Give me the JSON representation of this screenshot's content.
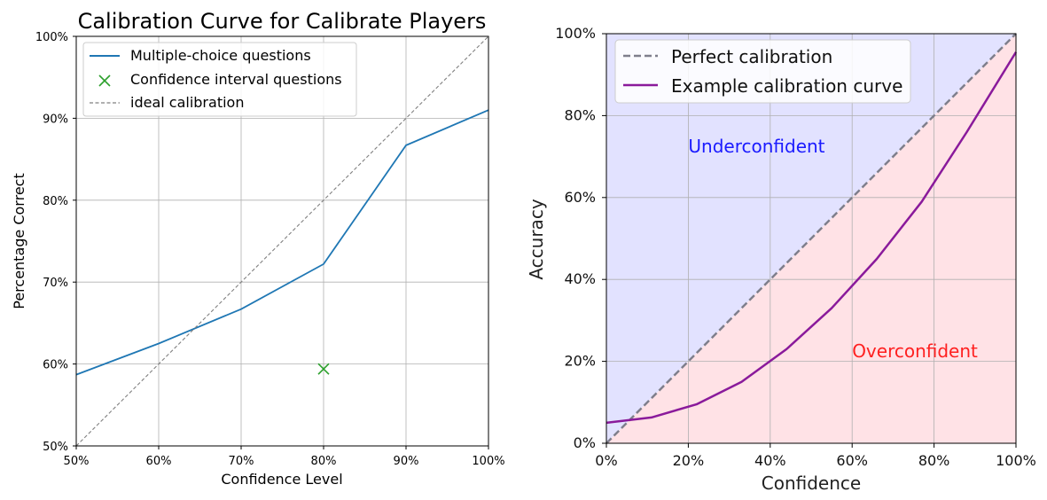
{
  "chart_data": [
    {
      "type": "line",
      "title": "Calibration Curve for Calibrate Players",
      "xlabel": "Confidence Level",
      "ylabel": "Percentage Correct",
      "xlim": [
        0.5,
        1.0
      ],
      "ylim": [
        0.5,
        1.0
      ],
      "xticks": [
        0.5,
        0.6,
        0.7,
        0.8,
        0.9,
        1.0
      ],
      "xtick_labels": [
        "50%",
        "60%",
        "70%",
        "80%",
        "90%",
        "100%"
      ],
      "yticks": [
        0.5,
        0.6,
        0.7,
        0.8,
        0.9,
        1.0
      ],
      "ytick_labels": [
        "50%",
        "60%",
        "70%",
        "80%",
        "90%",
        "100%"
      ],
      "grid": true,
      "legend_position": "top-left",
      "series": [
        {
          "name": "Multiple-choice questions",
          "kind": "line",
          "color": "#1f77b4",
          "x": [
            0.5,
            0.6,
            0.7,
            0.8,
            0.9,
            1.0
          ],
          "y": [
            0.587,
            0.625,
            0.667,
            0.722,
            0.867,
            0.91
          ]
        },
        {
          "name": "Confidence interval questions",
          "kind": "marker-x",
          "color": "#2ca02c",
          "x": [
            0.8
          ],
          "y": [
            0.594
          ]
        },
        {
          "name": "ideal calibration",
          "kind": "dashed",
          "color": "#808080",
          "x": [
            0.5,
            1.0
          ],
          "y": [
            0.5,
            1.0
          ]
        }
      ]
    },
    {
      "type": "line",
      "title": "",
      "xlabel": "Confidence",
      "ylabel": "Accuracy",
      "xlim": [
        0.0,
        1.0
      ],
      "ylim": [
        0.0,
        1.0
      ],
      "xticks": [
        0.0,
        0.2,
        0.4,
        0.6,
        0.8,
        1.0
      ],
      "xtick_labels": [
        "0%",
        "20%",
        "40%",
        "60%",
        "80%",
        "100%"
      ],
      "yticks": [
        0.0,
        0.2,
        0.4,
        0.6,
        0.8,
        1.0
      ],
      "ytick_labels": [
        "0%",
        "20%",
        "40%",
        "60%",
        "80%",
        "100%"
      ],
      "grid": true,
      "legend_position": "top-left",
      "regions": [
        {
          "name": "above-diagonal",
          "color": "#e2e2ff"
        },
        {
          "name": "below-diagonal",
          "color": "#ffe2e6"
        }
      ],
      "annotations": [
        {
          "text": "Underconfident",
          "x": 0.2,
          "y": 0.71,
          "color": "#1a1aff"
        },
        {
          "text": "Overconfident",
          "x": 0.6,
          "y": 0.21,
          "color": "#ff2020"
        }
      ],
      "series": [
        {
          "name": "Perfect calibration",
          "kind": "dashed",
          "color": "#7f7f8c",
          "x": [
            0.0,
            1.0
          ],
          "y": [
            0.0,
            1.0
          ]
        },
        {
          "name": "Example calibration curve",
          "kind": "line",
          "color": "#8a1a9b",
          "x": [
            0.0,
            0.11,
            0.22,
            0.33,
            0.44,
            0.55,
            0.66,
            0.77,
            0.88,
            1.0
          ],
          "y": [
            0.05,
            0.063,
            0.095,
            0.15,
            0.23,
            0.33,
            0.45,
            0.59,
            0.76,
            0.955
          ]
        }
      ]
    }
  ]
}
